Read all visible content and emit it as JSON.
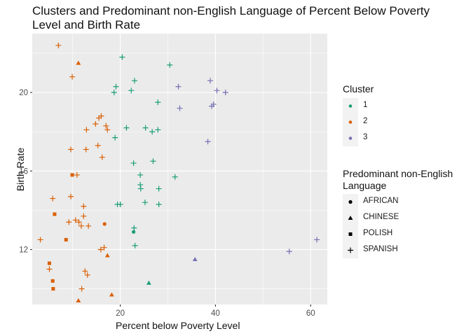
{
  "chart_data": {
    "type": "scatter",
    "title_lines": [
      "Clusters and Predominant non-English Language of Percent Below Poverty",
      "Level and Birth Rate"
    ],
    "xlabel": "Percent below Poverty Level",
    "ylabel": "Birth Rate",
    "xlim": [
      1.5,
      63.5
    ],
    "ylim": [
      9.2,
      23.0
    ],
    "x_ticks": [
      20,
      40,
      60
    ],
    "y_ticks": [
      12,
      16,
      20
    ],
    "grid": true,
    "legend_position": "right",
    "color_legend": {
      "title": "Cluster",
      "entries": [
        {
          "label": "1",
          "color": "#1b9e77"
        },
        {
          "label": "2",
          "color": "#d95f02"
        },
        {
          "label": "3",
          "color": "#7570b3"
        }
      ]
    },
    "shape_legend": {
      "title_lines": [
        "Predominant non-English",
        "Language"
      ],
      "entries": [
        {
          "label": "AFRICAN",
          "shape": "circle"
        },
        {
          "label": "CHINESE",
          "shape": "triangle"
        },
        {
          "label": "POLISH",
          "shape": "square"
        },
        {
          "label": "SPANISH",
          "shape": "plus"
        }
      ]
    },
    "points": [
      {
        "x": 7.0,
        "y": 22.4,
        "cluster": "2",
        "lang": "SPANISH"
      },
      {
        "x": 11.2,
        "y": 21.5,
        "cluster": "2",
        "lang": "CHINESE"
      },
      {
        "x": 9.9,
        "y": 20.8,
        "cluster": "2",
        "lang": "SPANISH"
      },
      {
        "x": 15.5,
        "y": 18.7,
        "cluster": "2",
        "lang": "SPANISH"
      },
      {
        "x": 16.0,
        "y": 18.8,
        "cluster": "2",
        "lang": "SPANISH"
      },
      {
        "x": 14.8,
        "y": 18.4,
        "cluster": "2",
        "lang": "SPANISH"
      },
      {
        "x": 17.0,
        "y": 18.3,
        "cluster": "2",
        "lang": "SPANISH"
      },
      {
        "x": 17.3,
        "y": 18.1,
        "cluster": "2",
        "lang": "SPANISH"
      },
      {
        "x": 12.9,
        "y": 18.1,
        "cluster": "2",
        "lang": "SPANISH"
      },
      {
        "x": 15.3,
        "y": 17.3,
        "cluster": "2",
        "lang": "SPANISH"
      },
      {
        "x": 9.6,
        "y": 17.1,
        "cluster": "2",
        "lang": "SPANISH"
      },
      {
        "x": 12.8,
        "y": 17.1,
        "cluster": "2",
        "lang": "SPANISH"
      },
      {
        "x": 16.2,
        "y": 16.7,
        "cluster": "2",
        "lang": "SPANISH"
      },
      {
        "x": 9.9,
        "y": 15.8,
        "cluster": "2",
        "lang": "POLISH"
      },
      {
        "x": 10.9,
        "y": 15.8,
        "cluster": "2",
        "lang": "SPANISH"
      },
      {
        "x": 9.6,
        "y": 14.7,
        "cluster": "2",
        "lang": "SPANISH"
      },
      {
        "x": 5.8,
        "y": 14.6,
        "cluster": "2",
        "lang": "SPANISH"
      },
      {
        "x": 12.3,
        "y": 14.2,
        "cluster": "2",
        "lang": "SPANISH"
      },
      {
        "x": 6.2,
        "y": 13.8,
        "cluster": "2",
        "lang": "POLISH"
      },
      {
        "x": 12.3,
        "y": 13.7,
        "cluster": "2",
        "lang": "SPANISH"
      },
      {
        "x": 10.6,
        "y": 13.5,
        "cluster": "2",
        "lang": "SPANISH"
      },
      {
        "x": 11.3,
        "y": 13.4,
        "cluster": "2",
        "lang": "SPANISH"
      },
      {
        "x": 9.2,
        "y": 13.4,
        "cluster": "2",
        "lang": "SPANISH"
      },
      {
        "x": 16.7,
        "y": 13.3,
        "cluster": "2",
        "lang": "AFRICAN"
      },
      {
        "x": 11.8,
        "y": 13.2,
        "cluster": "2",
        "lang": "SPANISH"
      },
      {
        "x": 13.3,
        "y": 13.2,
        "cluster": "2",
        "lang": "SPANISH"
      },
      {
        "x": 3.2,
        "y": 12.5,
        "cluster": "2",
        "lang": "SPANISH"
      },
      {
        "x": 8.6,
        "y": 12.5,
        "cluster": "2",
        "lang": "POLISH"
      },
      {
        "x": 16.6,
        "y": 12.1,
        "cluster": "2",
        "lang": "SPANISH"
      },
      {
        "x": 15.9,
        "y": 12.0,
        "cluster": "2",
        "lang": "SPANISH"
      },
      {
        "x": 17.3,
        "y": 11.7,
        "cluster": "2",
        "lang": "CHINESE"
      },
      {
        "x": 5.1,
        "y": 11.3,
        "cluster": "2",
        "lang": "POLISH"
      },
      {
        "x": 5.1,
        "y": 11.0,
        "cluster": "2",
        "lang": "SPANISH"
      },
      {
        "x": 12.6,
        "y": 10.9,
        "cluster": "2",
        "lang": "SPANISH"
      },
      {
        "x": 13.1,
        "y": 10.7,
        "cluster": "2",
        "lang": "SPANISH"
      },
      {
        "x": 5.8,
        "y": 10.4,
        "cluster": "2",
        "lang": "POLISH"
      },
      {
        "x": 5.9,
        "y": 10.0,
        "cluster": "2",
        "lang": "POLISH"
      },
      {
        "x": 11.9,
        "y": 10.0,
        "cluster": "2",
        "lang": "SPANISH"
      },
      {
        "x": 18.2,
        "y": 9.7,
        "cluster": "2",
        "lang": "CHINESE"
      },
      {
        "x": 11.2,
        "y": 9.4,
        "cluster": "2",
        "lang": "CHINESE"
      },
      {
        "x": 20.4,
        "y": 21.8,
        "cluster": "1",
        "lang": "SPANISH"
      },
      {
        "x": 30.4,
        "y": 21.4,
        "cluster": "1",
        "lang": "SPANISH"
      },
      {
        "x": 23.0,
        "y": 20.6,
        "cluster": "1",
        "lang": "SPANISH"
      },
      {
        "x": 19.1,
        "y": 20.3,
        "cluster": "1",
        "lang": "SPANISH"
      },
      {
        "x": 22.3,
        "y": 20.1,
        "cluster": "1",
        "lang": "SPANISH"
      },
      {
        "x": 18.7,
        "y": 20.0,
        "cluster": "1",
        "lang": "SPANISH"
      },
      {
        "x": 27.9,
        "y": 19.5,
        "cluster": "1",
        "lang": "SPANISH"
      },
      {
        "x": 21.3,
        "y": 18.2,
        "cluster": "1",
        "lang": "SPANISH"
      },
      {
        "x": 25.3,
        "y": 18.2,
        "cluster": "1",
        "lang": "SPANISH"
      },
      {
        "x": 27.9,
        "y": 18.1,
        "cluster": "1",
        "lang": "SPANISH"
      },
      {
        "x": 26.7,
        "y": 18.0,
        "cluster": "1",
        "lang": "SPANISH"
      },
      {
        "x": 18.9,
        "y": 17.7,
        "cluster": "1",
        "lang": "SPANISH"
      },
      {
        "x": 26.9,
        "y": 16.5,
        "cluster": "1",
        "lang": "SPANISH"
      },
      {
        "x": 22.8,
        "y": 16.4,
        "cluster": "1",
        "lang": "SPANISH"
      },
      {
        "x": 24.2,
        "y": 15.8,
        "cluster": "1",
        "lang": "SPANISH"
      },
      {
        "x": 31.5,
        "y": 15.7,
        "cluster": "1",
        "lang": "SPANISH"
      },
      {
        "x": 24.2,
        "y": 15.3,
        "cluster": "1",
        "lang": "SPANISH"
      },
      {
        "x": 24.3,
        "y": 15.1,
        "cluster": "1",
        "lang": "SPANISH"
      },
      {
        "x": 28.1,
        "y": 15.1,
        "cluster": "1",
        "lang": "SPANISH"
      },
      {
        "x": 25.2,
        "y": 14.4,
        "cluster": "1",
        "lang": "SPANISH"
      },
      {
        "x": 19.4,
        "y": 14.3,
        "cluster": "1",
        "lang": "SPANISH"
      },
      {
        "x": 20.0,
        "y": 14.3,
        "cluster": "1",
        "lang": "SPANISH"
      },
      {
        "x": 28.1,
        "y": 14.3,
        "cluster": "1",
        "lang": "SPANISH"
      },
      {
        "x": 22.9,
        "y": 13.1,
        "cluster": "1",
        "lang": "SPANISH"
      },
      {
        "x": 22.8,
        "y": 12.9,
        "cluster": "1",
        "lang": "AFRICAN"
      },
      {
        "x": 23.1,
        "y": 12.2,
        "cluster": "1",
        "lang": "SPANISH"
      },
      {
        "x": 26.0,
        "y": 10.3,
        "cluster": "1",
        "lang": "CHINESE"
      },
      {
        "x": 38.9,
        "y": 20.6,
        "cluster": "3",
        "lang": "SPANISH"
      },
      {
        "x": 32.2,
        "y": 20.3,
        "cluster": "3",
        "lang": "SPANISH"
      },
      {
        "x": 40.3,
        "y": 20.1,
        "cluster": "3",
        "lang": "SPANISH"
      },
      {
        "x": 42.1,
        "y": 20.0,
        "cluster": "3",
        "lang": "SPANISH"
      },
      {
        "x": 39.6,
        "y": 19.4,
        "cluster": "3",
        "lang": "SPANISH"
      },
      {
        "x": 39.2,
        "y": 19.3,
        "cluster": "3",
        "lang": "SPANISH"
      },
      {
        "x": 32.5,
        "y": 19.2,
        "cluster": "3",
        "lang": "SPANISH"
      },
      {
        "x": 38.4,
        "y": 17.5,
        "cluster": "3",
        "lang": "SPANISH"
      },
      {
        "x": 61.3,
        "y": 12.5,
        "cluster": "3",
        "lang": "SPANISH"
      },
      {
        "x": 55.5,
        "y": 11.9,
        "cluster": "3",
        "lang": "SPANISH"
      },
      {
        "x": 35.7,
        "y": 11.5,
        "cluster": "3",
        "lang": "CHINESE"
      }
    ]
  }
}
